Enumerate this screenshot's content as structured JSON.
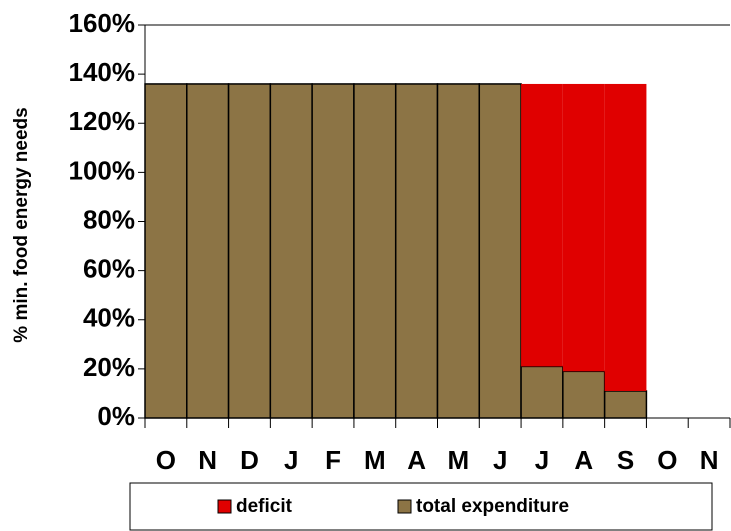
{
  "chart_data": {
    "type": "stacked_bar",
    "y_label": "% min. food energy needs",
    "categories": [
      "O",
      "N",
      "D",
      "J",
      "F",
      "M",
      "A",
      "M",
      "J",
      "J",
      "A",
      "S",
      "O",
      "N"
    ],
    "series": [
      {
        "name": "deficit",
        "color": "#e00000",
        "values": [
          0,
          0,
          0,
          0,
          0,
          0,
          0,
          0,
          0,
          115,
          117,
          125,
          null,
          null
        ]
      },
      {
        "name": "total expenditure",
        "color": "#8c7445",
        "values": [
          136,
          136,
          136,
          136,
          136,
          136,
          136,
          136,
          136,
          21,
          19,
          11,
          null,
          null
        ]
      }
    ],
    "ylim": [
      0,
      160
    ],
    "yticks": [
      {
        "value": 0,
        "label": "0%"
      },
      {
        "value": 20,
        "label": "20%"
      },
      {
        "value": 40,
        "label": "40%"
      },
      {
        "value": 60,
        "label": "60%"
      },
      {
        "value": 80,
        "label": "80%"
      },
      {
        "value": 100,
        "label": "100%"
      },
      {
        "value": 120,
        "label": "120%"
      },
      {
        "value": 140,
        "label": "140%"
      },
      {
        "value": 160,
        "label": "160%"
      }
    ],
    "legend": "bottom"
  }
}
